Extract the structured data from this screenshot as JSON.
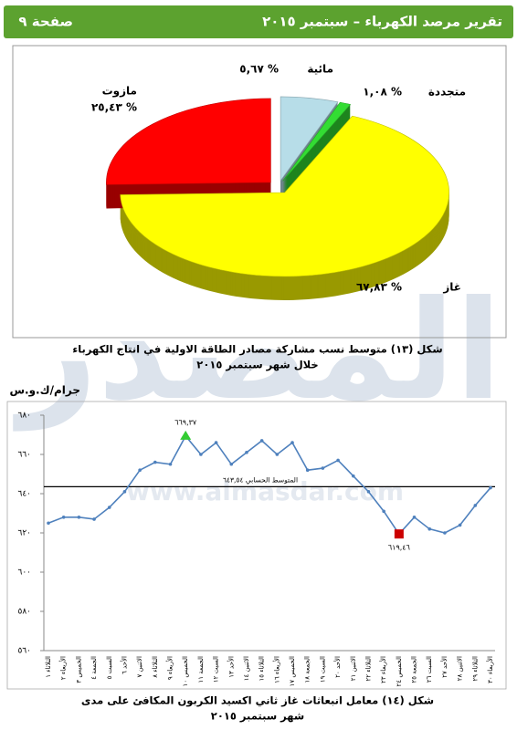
{
  "header": {
    "title": "تقرير مرصد الكهرباء – سبتمبر ٢٠١٥",
    "page": "صفحة ٩"
  },
  "watermark": {
    "logo": "المصدر",
    "url": "www.almasdar.com"
  },
  "chart_data": [
    {
      "type": "pie",
      "categories": [
        "مائية",
        "متجددة",
        "غاز",
        "مازوت"
      ],
      "values": [
        5.67,
        1.08,
        67.83,
        25.43
      ],
      "value_labels": [
        "٥,٦٧ %",
        "١,٠٨ %",
        "٦٧,٨٣ %",
        "٢٥,٤٣ %"
      ],
      "colors": [
        "#b7dde8",
        "#33dd33",
        "#ffff00",
        "#ff0000"
      ],
      "caption": [
        "شكل (١٣) متوسط نسب مشاركة مصادر الطاقة الاولية في انتاج الكهرباء",
        "خلال شهر سبتمبر ٢٠١٥"
      ]
    },
    {
      "type": "line",
      "y_label": "جرام/ك.و.س",
      "categories": [
        "الثلاثاء ١",
        "الأربعاء ٢",
        "الخميس ٣",
        "الجمعة ٤",
        "السبت ٥",
        "الأحد ٦",
        "الاثنين ٧",
        "الثلاثاء ٨",
        "الأربعاء ٩",
        "الخميس ١٠",
        "الجمعة ١١",
        "السبت ١٢",
        "الأحد ١٣",
        "الاثنين ١٤",
        "الثلاثاء ١٥",
        "الأربعاء ١٦",
        "الخميس ١٧",
        "الجمعة ١٨",
        "السبت ١٩",
        "الأحد ٢٠",
        "الاثنين ٢١",
        "الثلاثاء ٢٢",
        "الأربعاء ٢٣",
        "الخميس ٢٤",
        "الجمعة ٢٥",
        "السبت ٢٦",
        "الأحد ٢٧",
        "الاثنين ٢٨",
        "الثلاثاء ٢٩",
        "الأربعاء ٣٠"
      ],
      "series": [
        {
          "name": null,
          "color": "#4f81bd",
          "values": [
            625,
            628,
            628,
            627,
            633,
            641,
            652,
            656,
            655,
            669.37,
            660,
            666,
            655,
            661,
            667,
            660,
            666,
            652,
            653,
            657,
            649,
            641,
            631,
            619.46,
            628,
            622,
            620,
            624,
            634,
            643
          ],
          "value_labels": [
            null,
            null,
            null,
            null,
            null,
            null,
            null,
            null,
            null,
            "٦٦٩,٣٧",
            null,
            null,
            null,
            null,
            null,
            null,
            null,
            null,
            null,
            null,
            null,
            null,
            null,
            "٦١٩,٤٦",
            null,
            null,
            null,
            null,
            null,
            null
          ]
        }
      ],
      "max_marker_color": "#33cc33",
      "min_marker_color": "#cc0000",
      "reference_line": {
        "value": 643.54,
        "label": "المتوسط الحسابي ٦٤٣,٥٤",
        "color": "#000000"
      },
      "ylim": [
        560,
        680
      ],
      "yticks": [
        {
          "value": 560,
          "label": "٥٦٠"
        },
        {
          "value": 580,
          "label": "٥٨٠"
        },
        {
          "value": 600,
          "label": "٦٠٠"
        },
        {
          "value": 620,
          "label": "٦٢٠"
        },
        {
          "value": 640,
          "label": "٦٤٠"
        },
        {
          "value": 660,
          "label": "٦٦٠"
        },
        {
          "value": 680,
          "label": "٦٨٠"
        }
      ],
      "grid": false,
      "caption": [
        "شكل (١٤) معامل انبعاثات غاز ثاني اكسيد الكربون المكافئ على مدى",
        "شهر سبتمبر ٢٠١٥"
      ]
    }
  ]
}
